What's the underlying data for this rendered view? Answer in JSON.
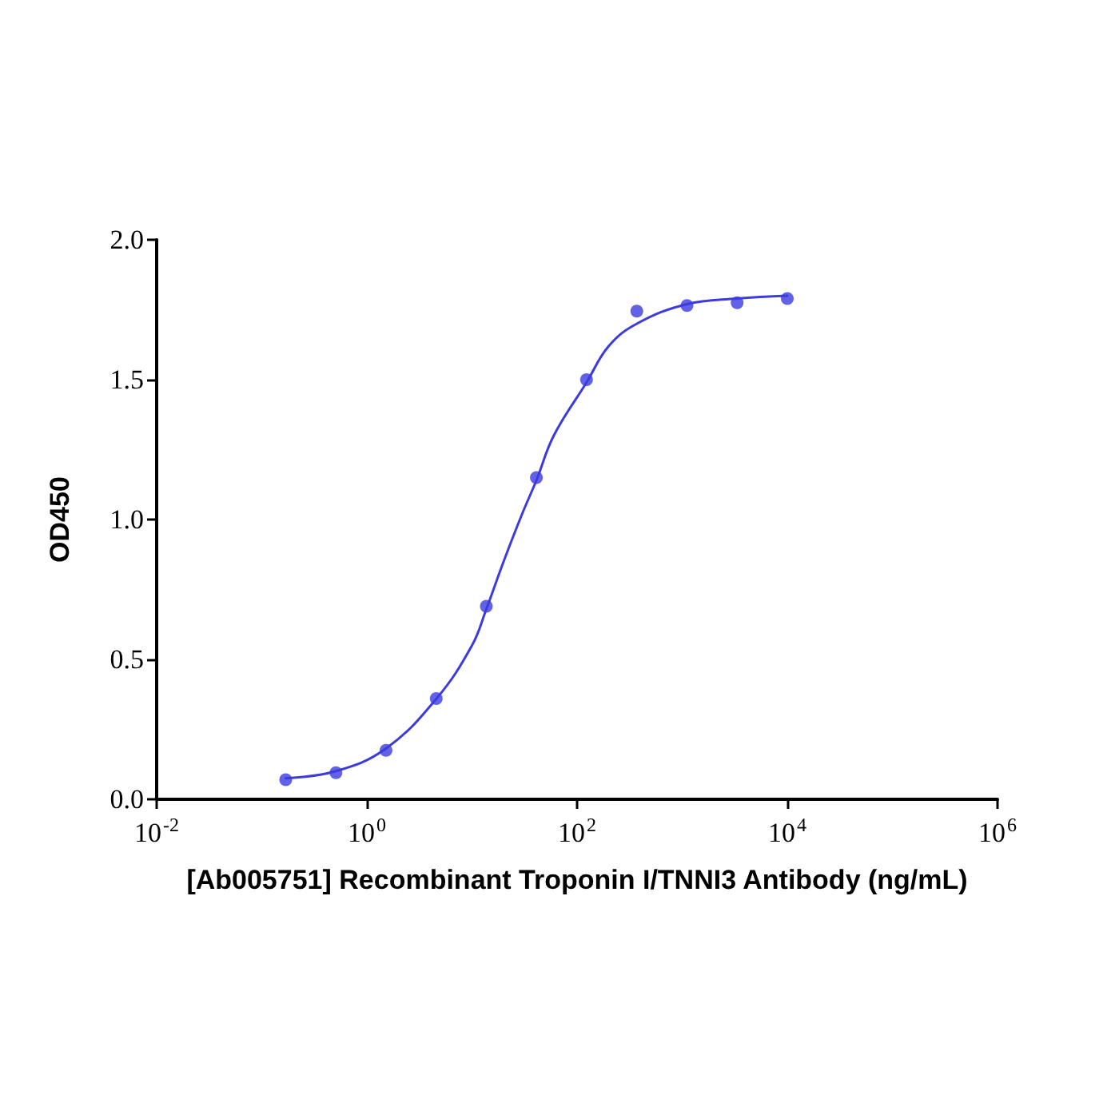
{
  "chart_data": {
    "type": "scatter",
    "xlabel": "[Ab005751] Recombinant Troponin I/TNNI3 Antibody (ng/mL)",
    "ylabel": "OD450",
    "log": "x",
    "marker": "circle",
    "grid": false,
    "xlim": [
      0.01,
      1000000
    ],
    "xticks": [
      {
        "value": 0.01,
        "label": "10$^{-2}$"
      },
      {
        "value": 1,
        "label": "10$^{0}$"
      },
      {
        "value": 100,
        "label": "10$^{2}$"
      },
      {
        "value": 10000,
        "label": "10$^{4}$"
      },
      {
        "value": 1000000,
        "label": "10$^{6}$"
      }
    ],
    "ylim": [
      0,
      2
    ],
    "yticks": [
      {
        "value": 0,
        "label": "0.0"
      },
      {
        "value": 0.5,
        "label": "0.5"
      },
      {
        "value": 1,
        "label": "1.0"
      },
      {
        "value": 1.5,
        "label": "1.5"
      },
      {
        "value": 2,
        "label": "2.0"
      }
    ],
    "series": [
      {
        "color": "#3b3be0",
        "x": [
          0.169,
          0.508,
          1.52,
          4.57,
          13.7,
          41,
          123,
          370,
          1111,
          3333,
          10000
        ],
        "values": [
          0.07,
          0.095,
          0.175,
          0.36,
          0.69,
          1.15,
          1.5,
          1.745,
          1.765,
          1.775,
          1.79
        ]
      },
      {
        "type": "line",
        "color": "#3b3be0",
        "marker": "none",
        "line_style": "solid",
        "x": [
          0.169,
          0.5,
          1.5,
          4.6,
          10,
          13.7,
          20,
          30,
          41,
          60,
          123,
          200,
          370,
          1111,
          3333,
          10000
        ],
        "values": [
          0.075,
          0.1,
          0.18,
          0.36,
          0.55,
          0.68,
          0.85,
          1.02,
          1.14,
          1.3,
          1.49,
          1.62,
          1.7,
          1.77,
          1.79,
          1.8
        ]
      }
    ]
  }
}
